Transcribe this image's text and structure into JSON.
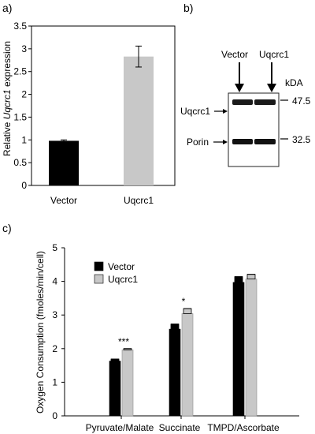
{
  "panels": {
    "a": "a)",
    "b": "b)",
    "c": "c)"
  },
  "chart_data": [
    {
      "type": "bar",
      "ylabel_prefix": "Relative ",
      "ylabel_gene": "Uqcrc1",
      "ylabel_suffix": " expression",
      "ylim": [
        0,
        3.5
      ],
      "yticks": [
        "0",
        "0.5",
        "1",
        "1.5",
        "2",
        "2.5",
        "3",
        "3.5"
      ],
      "categories": [
        "Vector",
        "Uqcrc1"
      ],
      "values": [
        0.98,
        2.83
      ],
      "errors": [
        0.02,
        0.23
      ],
      "colors": [
        "#000000",
        "#c8c8c8"
      ]
    },
    {
      "type": "bar",
      "ylabel": "Oxygen Consumption (fmoles/min/cell)",
      "ylim": [
        0,
        5
      ],
      "yticks": [
        "0",
        "1",
        "2",
        "3",
        "4",
        "5"
      ],
      "categories": [
        "Pyruvate/Malate",
        "Succinate",
        "TMPD/Ascorbate"
      ],
      "series": [
        {
          "name": "Vector",
          "values": [
            1.63,
            2.58,
            3.97
          ],
          "errors": [
            0.06,
            0.15,
            0.17
          ],
          "color": "#000000"
        },
        {
          "name": "Uqcrc1",
          "values": [
            1.96,
            3.04,
            4.07
          ],
          "errors": [
            0.04,
            0.15,
            0.14
          ],
          "color": "#c8c8c8"
        }
      ],
      "annotations": [
        "***",
        "*",
        ""
      ],
      "legend_position": "top-left"
    }
  ],
  "blot": {
    "lane_labels": [
      "Vector",
      "Uqcrc1"
    ],
    "unit": "kDA",
    "markers": [
      "47.5",
      "32.5"
    ],
    "bands": [
      "Uqcrc1",
      "Porin"
    ]
  }
}
